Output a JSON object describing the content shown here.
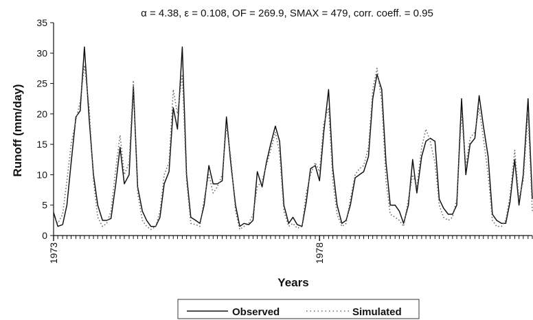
{
  "chart_data": {
    "type": "line",
    "title": "α = 4.38, ε = 0.108, OF = 269.9, SMAX = 479, corr. coeff. = 0.95",
    "xlabel": "Years",
    "ylabel": "Runoff (mm/day)",
    "ylim": [
      0,
      35
    ],
    "yticks": [
      0,
      5,
      10,
      15,
      20,
      25,
      30,
      35
    ],
    "xlim": [
      1973.0,
      1982.0
    ],
    "xtick_labels": [
      "1973",
      "1978"
    ],
    "xtick_values": [
      1973.0,
      1978.0
    ],
    "grid": "none",
    "legend_placement": "bottom",
    "series": [
      {
        "name": "Observed",
        "style": "solid",
        "color": "#111111",
        "x": [
          1973.0,
          1973.08,
          1973.17,
          1973.25,
          1973.33,
          1973.42,
          1973.5,
          1973.58,
          1973.67,
          1973.75,
          1973.83,
          1973.92,
          1974.0,
          1974.08,
          1974.17,
          1974.25,
          1974.33,
          1974.42,
          1974.5,
          1974.58,
          1974.67,
          1974.75,
          1974.83,
          1974.92,
          1975.0,
          1975.08,
          1975.17,
          1975.25,
          1975.33,
          1975.42,
          1975.5,
          1975.58,
          1975.67,
          1975.75,
          1975.83,
          1975.92,
          1976.0,
          1976.08,
          1976.17,
          1976.25,
          1976.33,
          1976.42,
          1976.5,
          1976.58,
          1976.67,
          1976.75,
          1976.83,
          1976.92,
          1977.0,
          1977.08,
          1977.17,
          1977.25,
          1977.33,
          1977.42,
          1977.5,
          1977.58,
          1977.67,
          1977.75,
          1977.83,
          1977.92,
          1978.0,
          1978.08,
          1978.17,
          1978.25,
          1978.33,
          1978.42,
          1978.5,
          1978.58,
          1978.67,
          1978.75,
          1978.83,
          1978.92,
          1979.0,
          1979.08,
          1979.17,
          1979.25,
          1979.33,
          1979.42,
          1979.5,
          1979.58,
          1979.67,
          1979.75,
          1979.83,
          1979.92,
          1980.0,
          1980.08,
          1980.17,
          1980.25,
          1980.33,
          1980.42,
          1980.5,
          1980.58,
          1980.67,
          1980.75,
          1980.83,
          1980.92,
          1981.0,
          1981.08,
          1981.17,
          1981.25,
          1981.33,
          1981.42,
          1981.5,
          1981.58,
          1981.67,
          1981.75,
          1981.83,
          1981.92,
          1982.0
        ],
        "values": [
          3.8,
          1.5,
          1.8,
          5.0,
          12.0,
          19.5,
          20.5,
          31.0,
          19.0,
          10.0,
          5.0,
          2.5,
          2.5,
          2.8,
          8.5,
          14.5,
          8.5,
          10.0,
          24.5,
          8.0,
          4.0,
          2.5,
          1.5,
          1.5,
          3.0,
          8.5,
          10.5,
          21.0,
          17.5,
          31.0,
          10.0,
          3.0,
          2.5,
          2.0,
          5.0,
          11.5,
          8.5,
          8.5,
          9.0,
          19.5,
          12.0,
          5.0,
          1.5,
          2.0,
          1.8,
          2.5,
          10.5,
          8.0,
          12.0,
          15.0,
          18.0,
          15.5,
          5.0,
          2.0,
          3.0,
          1.8,
          1.5,
          5.5,
          11.0,
          11.5,
          9.0,
          17.0,
          24.0,
          11.0,
          5.0,
          2.0,
          2.5,
          5.0,
          9.5,
          10.0,
          10.5,
          13.0,
          22.5,
          26.5,
          24.0,
          12.0,
          5.0,
          5.0,
          4.0,
          2.0,
          5.0,
          12.5,
          7.0,
          13.0,
          15.5,
          16.0,
          15.5,
          6.0,
          4.5,
          3.5,
          3.5,
          5.0,
          22.5,
          10.0,
          15.0,
          16.0,
          23.0,
          18.0,
          13.0,
          3.5,
          2.5,
          2.0,
          2.0,
          5.5,
          12.5,
          5.0,
          10.0,
          22.5,
          6.0
        ]
      },
      {
        "name": "Simulated",
        "style": "dotted",
        "color": "#666666",
        "x": [
          1973.0,
          1973.08,
          1973.17,
          1973.25,
          1973.33,
          1973.42,
          1973.5,
          1973.58,
          1973.67,
          1973.75,
          1973.83,
          1973.92,
          1974.0,
          1974.08,
          1974.17,
          1974.25,
          1974.33,
          1974.42,
          1974.5,
          1974.58,
          1974.67,
          1974.75,
          1974.83,
          1974.92,
          1975.0,
          1975.08,
          1975.17,
          1975.25,
          1975.33,
          1975.42,
          1975.5,
          1975.58,
          1975.67,
          1975.75,
          1975.83,
          1975.92,
          1976.0,
          1976.08,
          1976.17,
          1976.25,
          1976.33,
          1976.42,
          1976.5,
          1976.58,
          1976.67,
          1976.75,
          1976.83,
          1976.92,
          1977.0,
          1977.08,
          1977.17,
          1977.25,
          1977.33,
          1977.42,
          1977.5,
          1977.58,
          1977.67,
          1977.75,
          1977.83,
          1977.92,
          1978.0,
          1978.08,
          1978.17,
          1978.25,
          1978.33,
          1978.42,
          1978.5,
          1978.58,
          1978.67,
          1978.75,
          1978.83,
          1978.92,
          1979.0,
          1979.08,
          1979.17,
          1979.25,
          1979.33,
          1979.42,
          1979.5,
          1979.58,
          1979.67,
          1979.75,
          1979.83,
          1979.92,
          1980.0,
          1980.08,
          1980.17,
          1980.25,
          1980.33,
          1980.42,
          1980.5,
          1980.58,
          1980.67,
          1980.75,
          1980.83,
          1980.92,
          1981.0,
          1981.08,
          1981.17,
          1981.25,
          1981.33,
          1981.42,
          1981.5,
          1981.58,
          1981.67,
          1981.75,
          1981.83,
          1981.92,
          1982.0
        ],
        "values": [
          3.0,
          2.0,
          3.5,
          9.0,
          15.0,
          19.0,
          22.0,
          28.0,
          21.0,
          9.0,
          3.0,
          1.5,
          2.0,
          4.0,
          11.0,
          16.5,
          10.0,
          12.0,
          25.5,
          7.0,
          2.5,
          1.5,
          1.0,
          1.5,
          4.0,
          10.0,
          12.0,
          24.0,
          20.0,
          26.5,
          9.0,
          2.0,
          1.8,
          1.5,
          6.0,
          10.0,
          7.0,
          8.0,
          10.0,
          18.0,
          13.0,
          4.0,
          1.0,
          1.5,
          2.0,
          3.5,
          8.0,
          9.0,
          11.5,
          14.0,
          17.0,
          13.5,
          4.0,
          1.5,
          2.0,
          1.2,
          1.5,
          7.0,
          10.0,
          12.0,
          10.5,
          18.5,
          21.0,
          9.0,
          3.5,
          1.5,
          2.0,
          6.0,
          10.0,
          11.0,
          11.5,
          14.5,
          24.0,
          27.5,
          22.0,
          9.0,
          3.5,
          3.0,
          2.5,
          1.5,
          6.0,
          10.0,
          8.0,
          14.5,
          17.5,
          15.5,
          12.0,
          5.0,
          3.0,
          2.5,
          3.0,
          6.0,
          20.0,
          11.5,
          16.0,
          17.0,
          21.0,
          16.0,
          10.0,
          2.5,
          1.5,
          1.5,
          2.5,
          6.5,
          14.0,
          6.0,
          9.0,
          20.0,
          4.0
        ]
      }
    ]
  }
}
